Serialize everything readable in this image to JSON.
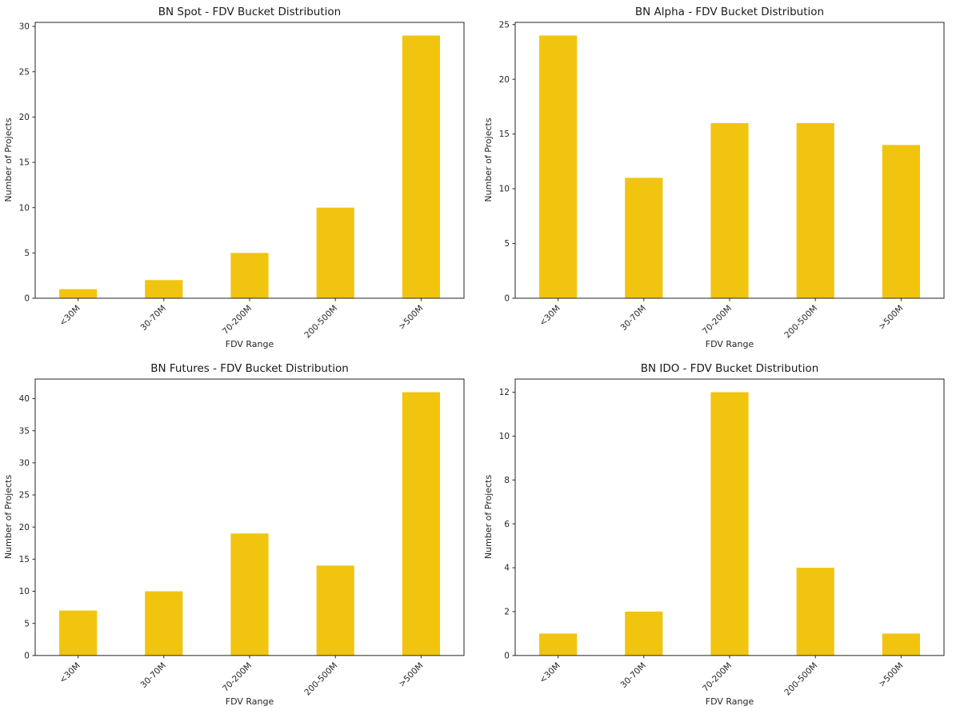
{
  "figure": {
    "background": "#ffffff",
    "bar_color": "#F1C40F",
    "axis_color": "#262626",
    "text_color": "#262626",
    "title_color": "#1a1a1a"
  },
  "chart_data": [
    {
      "type": "bar",
      "title": "BN Spot - FDV Bucket Distribution",
      "categories": [
        "<30M",
        "30-70M",
        "70-200M",
        "200-500M",
        ">500M"
      ],
      "values": [
        1,
        2,
        5,
        10,
        29
      ],
      "xlabel": "FDV Range",
      "ylabel": "Number of Projects",
      "ylim": [
        0,
        30.45
      ],
      "yticks": [
        0,
        5,
        10,
        15,
        20,
        25,
        30
      ],
      "grid": false,
      "legend": null
    },
    {
      "type": "bar",
      "title": "BN Alpha - FDV Bucket Distribution",
      "categories": [
        "<30M",
        "30-70M",
        "70-200M",
        "200-500M",
        ">500M"
      ],
      "values": [
        24,
        11,
        16,
        16,
        14
      ],
      "xlabel": "FDV Range",
      "ylabel": "Number of Projects",
      "ylim": [
        0,
        25.2
      ],
      "yticks": [
        0,
        5,
        10,
        15,
        20,
        25
      ],
      "grid": false,
      "legend": null
    },
    {
      "type": "bar",
      "title": "BN Futures - FDV Bucket Distribution",
      "categories": [
        "<30M",
        "30-70M",
        "70-200M",
        "200-500M",
        ">500M"
      ],
      "values": [
        7,
        10,
        19,
        14,
        41
      ],
      "xlabel": "FDV Range",
      "ylabel": "Number of Projects",
      "ylim": [
        0,
        43.05
      ],
      "yticks": [
        0,
        5,
        10,
        15,
        20,
        25,
        30,
        35,
        40
      ],
      "grid": false,
      "legend": null
    },
    {
      "type": "bar",
      "title": "BN IDO - FDV Bucket Distribution",
      "categories": [
        "<30M",
        "30-70M",
        "70-200M",
        "200-500M",
        ">500M"
      ],
      "values": [
        1,
        2,
        12,
        4,
        1
      ],
      "xlabel": "FDV Range",
      "ylabel": "Number of Projects",
      "ylim": [
        0,
        12.6
      ],
      "yticks": [
        0,
        2,
        4,
        6,
        8,
        10,
        12
      ],
      "grid": false,
      "legend": null
    }
  ]
}
